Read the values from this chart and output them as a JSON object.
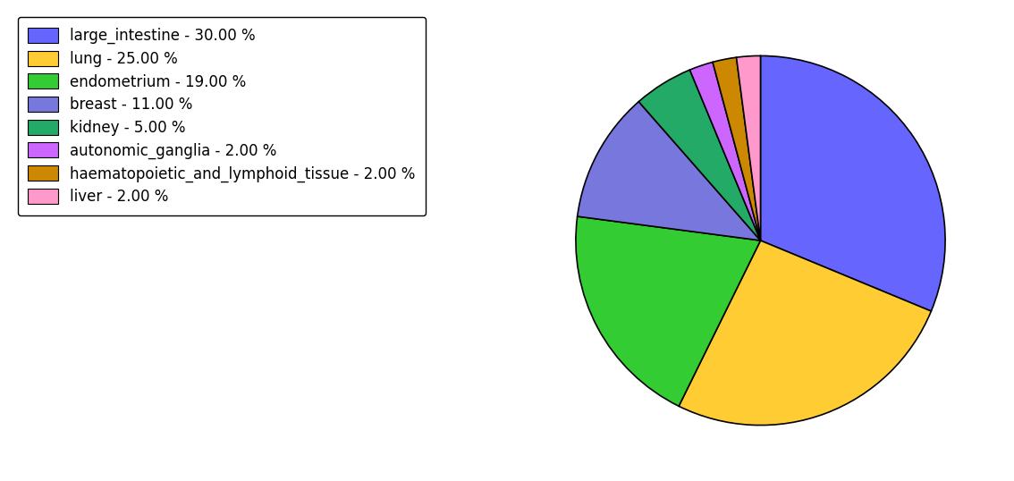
{
  "labels": [
    "large_intestine",
    "lung",
    "endometrium",
    "breast",
    "kidney",
    "autonomic_ganglia",
    "haematopoietic_and_lymphoid_tissue",
    "liver"
  ],
  "values": [
    30.0,
    25.0,
    19.0,
    11.0,
    5.0,
    2.0,
    2.0,
    2.0
  ],
  "colors": [
    "#6666ff",
    "#ffcc33",
    "#33cc33",
    "#7777dd",
    "#22aa66",
    "#cc66ff",
    "#cc8800",
    "#ff99cc"
  ],
  "legend_labels": [
    "large_intestine - 30.00 %",
    "lung - 25.00 %",
    "endometrium - 19.00 %",
    "breast - 11.00 %",
    "kidney - 5.00 %",
    "autonomic_ganglia - 2.00 %",
    "haematopoietic_and_lymphoid_tissue - 2.00 %",
    "liver - 2.00 %"
  ],
  "figsize": [
    11.34,
    5.38
  ],
  "dpi": 100,
  "startangle": 90,
  "legend_fontsize": 12,
  "background_color": "#ffffff"
}
